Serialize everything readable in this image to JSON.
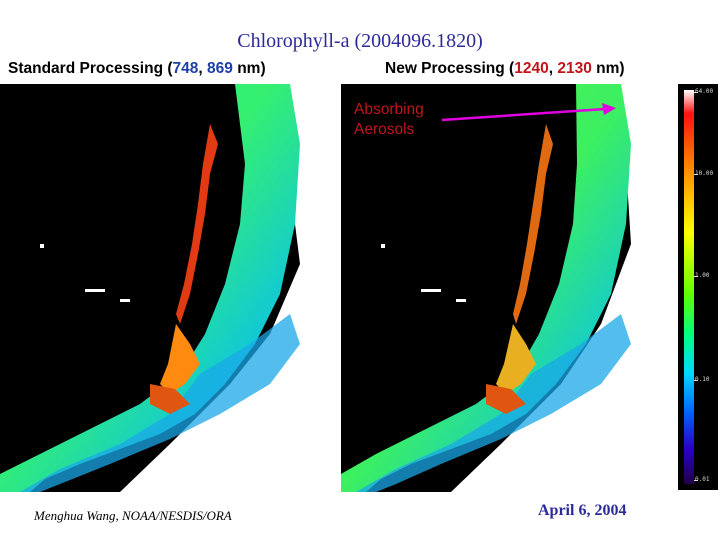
{
  "title": "Chlorophyll-a (2004096.1820)",
  "standard": {
    "prefix": "Standard Processing (",
    "b1": "748",
    "sep": ", ",
    "b2": "869",
    "suffix": " nm)"
  },
  "new": {
    "prefix": "New Processing (",
    "b1": "1240",
    "sep": ", ",
    "b2": "2130",
    "suffix": " nm)"
  },
  "annotation": {
    "line1": "Absorbing",
    "line2": "Aerosols"
  },
  "colorbar": {
    "ticks": [
      "64.00",
      "10.00",
      "1.00",
      "0.10",
      "0.01"
    ]
  },
  "credit": "Menghua Wang, NOAA/NESDIS/ORA",
  "date": "April 6, 2004",
  "colors": {
    "title": "#2b2b9a",
    "band_blue": "#1f3fa8",
    "band_red": "#c0161c",
    "arrow": "#e000e0"
  }
}
